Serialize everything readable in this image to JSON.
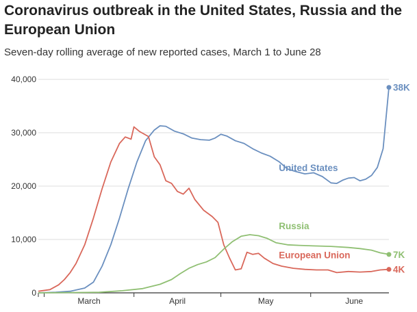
{
  "title": "Coronavirus outbreak in the United States, Russia and the European Union",
  "subtitle": "Seven-day rolling average of new reported cases, March 1 to June 28",
  "colors": {
    "united_states": "#6a8fbf",
    "european_union": "#d9675a",
    "russia": "#8fbf72",
    "grid": "#dddddd",
    "axis": "#333333"
  },
  "chart_data": {
    "type": "line",
    "title": "Coronavirus outbreak in the United States, Russia and the European Union",
    "subtitle": "Seven-day rolling average of new reported cases, March 1 to June 28",
    "x_range": [
      "2020-02-28",
      "2020-06-28"
    ],
    "ylim": [
      0,
      40000
    ],
    "yticks": [
      0,
      10000,
      20000,
      30000,
      40000
    ],
    "ytick_labels": [
      "0",
      "10,000",
      "20,000",
      "30,000",
      "40,000"
    ],
    "xtick_labels": [
      "March",
      "April",
      "May",
      "June"
    ],
    "grid": true,
    "series": [
      {
        "name": "United States",
        "end_label": "38K",
        "points": [
          [
            "2020-02-28",
            0
          ],
          [
            "2020-03-05",
            100
          ],
          [
            "2020-03-10",
            300
          ],
          [
            "2020-03-15",
            900
          ],
          [
            "2020-03-18",
            2000
          ],
          [
            "2020-03-21",
            5000
          ],
          [
            "2020-03-24",
            9000
          ],
          [
            "2020-03-27",
            14000
          ],
          [
            "2020-03-30",
            19500
          ],
          [
            "2020-04-02",
            24500
          ],
          [
            "2020-04-05",
            28500
          ],
          [
            "2020-04-08",
            30500
          ],
          [
            "2020-04-10",
            31300
          ],
          [
            "2020-04-12",
            31200
          ],
          [
            "2020-04-15",
            30300
          ],
          [
            "2020-04-18",
            29800
          ],
          [
            "2020-04-21",
            29000
          ],
          [
            "2020-04-24",
            28700
          ],
          [
            "2020-04-27",
            28600
          ],
          [
            "2020-04-29",
            29000
          ],
          [
            "2020-05-01",
            29700
          ],
          [
            "2020-05-03",
            29400
          ],
          [
            "2020-05-06",
            28500
          ],
          [
            "2020-05-09",
            28000
          ],
          [
            "2020-05-12",
            27000
          ],
          [
            "2020-05-15",
            26200
          ],
          [
            "2020-05-18",
            25600
          ],
          [
            "2020-05-21",
            24600
          ],
          [
            "2020-05-24",
            23200
          ],
          [
            "2020-05-27",
            22700
          ],
          [
            "2020-05-30",
            22300
          ],
          [
            "2020-06-02",
            22500
          ],
          [
            "2020-06-05",
            21800
          ],
          [
            "2020-06-08",
            20600
          ],
          [
            "2020-06-10",
            20500
          ],
          [
            "2020-06-12",
            21100
          ],
          [
            "2020-06-14",
            21500
          ],
          [
            "2020-06-16",
            21600
          ],
          [
            "2020-06-18",
            21000
          ],
          [
            "2020-06-20",
            21300
          ],
          [
            "2020-06-22",
            22000
          ],
          [
            "2020-06-24",
            23500
          ],
          [
            "2020-06-26",
            27000
          ],
          [
            "2020-06-28",
            38500
          ]
        ]
      },
      {
        "name": "European Union",
        "end_label": "4K",
        "points": [
          [
            "2020-02-28",
            300
          ],
          [
            "2020-03-03",
            600
          ],
          [
            "2020-03-06",
            1500
          ],
          [
            "2020-03-08",
            2500
          ],
          [
            "2020-03-10",
            3800
          ],
          [
            "2020-03-12",
            5500
          ],
          [
            "2020-03-15",
            9000
          ],
          [
            "2020-03-18",
            14000
          ],
          [
            "2020-03-21",
            19500
          ],
          [
            "2020-03-24",
            24500
          ],
          [
            "2020-03-27",
            28000
          ],
          [
            "2020-03-29",
            29200
          ],
          [
            "2020-03-31",
            28800
          ],
          [
            "2020-04-01",
            31100
          ],
          [
            "2020-04-03",
            30200
          ],
          [
            "2020-04-06",
            29300
          ],
          [
            "2020-04-08",
            25500
          ],
          [
            "2020-04-10",
            24000
          ],
          [
            "2020-04-12",
            21000
          ],
          [
            "2020-04-14",
            20500
          ],
          [
            "2020-04-16",
            19000
          ],
          [
            "2020-04-18",
            18500
          ],
          [
            "2020-04-20",
            19600
          ],
          [
            "2020-04-22",
            17500
          ],
          [
            "2020-04-25",
            15500
          ],
          [
            "2020-04-28",
            14300
          ],
          [
            "2020-04-30",
            13200
          ],
          [
            "2020-05-02",
            9000
          ],
          [
            "2020-05-04",
            6500
          ],
          [
            "2020-05-06",
            4300
          ],
          [
            "2020-05-08",
            4500
          ],
          [
            "2020-05-10",
            7600
          ],
          [
            "2020-05-12",
            7200
          ],
          [
            "2020-05-14",
            7400
          ],
          [
            "2020-05-16",
            6500
          ],
          [
            "2020-05-19",
            5500
          ],
          [
            "2020-05-22",
            5000
          ],
          [
            "2020-05-26",
            4600
          ],
          [
            "2020-05-30",
            4400
          ],
          [
            "2020-06-03",
            4300
          ],
          [
            "2020-06-07",
            4300
          ],
          [
            "2020-06-10",
            3800
          ],
          [
            "2020-06-14",
            4000
          ],
          [
            "2020-06-18",
            3900
          ],
          [
            "2020-06-22",
            4000
          ],
          [
            "2020-06-25",
            4300
          ],
          [
            "2020-06-28",
            4400
          ]
        ]
      },
      {
        "name": "Russia",
        "end_label": "7K",
        "points": [
          [
            "2020-02-28",
            0
          ],
          [
            "2020-03-20",
            100
          ],
          [
            "2020-03-28",
            400
          ],
          [
            "2020-04-04",
            800
          ],
          [
            "2020-04-10",
            1600
          ],
          [
            "2020-04-14",
            2500
          ],
          [
            "2020-04-17",
            3600
          ],
          [
            "2020-04-20",
            4600
          ],
          [
            "2020-04-23",
            5300
          ],
          [
            "2020-04-26",
            5800
          ],
          [
            "2020-04-29",
            6600
          ],
          [
            "2020-05-02",
            8200
          ],
          [
            "2020-05-05",
            9600
          ],
          [
            "2020-05-08",
            10600
          ],
          [
            "2020-05-11",
            10900
          ],
          [
            "2020-05-14",
            10700
          ],
          [
            "2020-05-17",
            10200
          ],
          [
            "2020-05-20",
            9400
          ],
          [
            "2020-05-24",
            9000
          ],
          [
            "2020-05-28",
            8900
          ],
          [
            "2020-06-02",
            8800
          ],
          [
            "2020-06-08",
            8700
          ],
          [
            "2020-06-14",
            8500
          ],
          [
            "2020-06-18",
            8300
          ],
          [
            "2020-06-22",
            8000
          ],
          [
            "2020-06-25",
            7500
          ],
          [
            "2020-06-28",
            7200
          ]
        ]
      }
    ]
  }
}
